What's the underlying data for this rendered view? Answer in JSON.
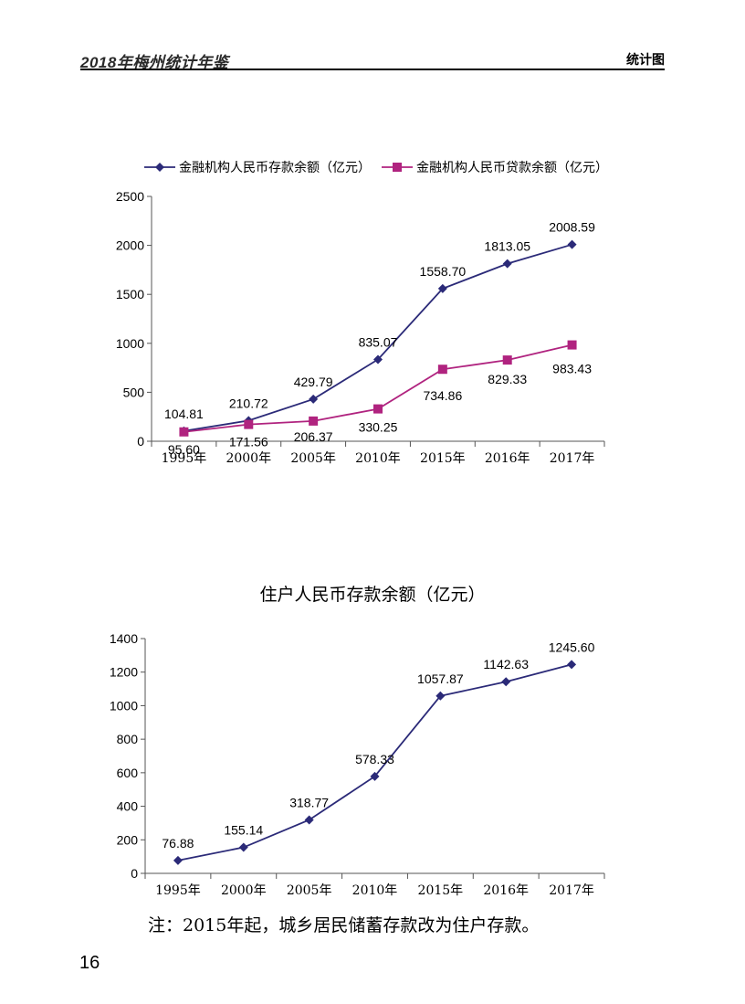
{
  "header": {
    "yearbook_title": "2018年梅州统计年鉴",
    "section_title": "统计图"
  },
  "page_number": "16",
  "note": "注：2015年起，城乡居民储蓄存款改为住户存款。",
  "colors": {
    "deposit_series": "#2b2a78",
    "loan_series": "#b0237f",
    "axis": "#555555"
  },
  "chart_data": [
    {
      "type": "line",
      "title": "",
      "categories": [
        "1995年",
        "2000年",
        "2005年",
        "2010年",
        "2015年",
        "2016年",
        "2017年"
      ],
      "ylim": [
        0,
        2500
      ],
      "yticks": [
        "0",
        "500",
        "1000",
        "1500",
        "2000",
        "2500"
      ],
      "grid": false,
      "legend_position": "top",
      "series": [
        {
          "name": "金融机构人民币存款余额（亿元）",
          "marker": "diamond",
          "color": "#2b2a78",
          "values": [
            104.81,
            210.72,
            429.79,
            835.07,
            1558.7,
            1813.05,
            2008.59
          ],
          "labels": [
            "104.81",
            "210.72",
            "429.79",
            "835.07",
            "1558.70",
            "1813.05",
            "2008.59"
          ]
        },
        {
          "name": "金融机构人民币贷款余额（亿元）",
          "marker": "square",
          "color": "#b0237f",
          "values": [
            95.6,
            171.56,
            206.37,
            330.25,
            734.86,
            829.33,
            983.43
          ],
          "labels": [
            "95.60",
            "171.56",
            "206.37",
            "330.25",
            "734.86",
            "829.33",
            "983.43"
          ]
        }
      ]
    },
    {
      "type": "line",
      "title": "住户人民币存款余额（亿元）",
      "categories": [
        "1995年",
        "2000年",
        "2005年",
        "2010年",
        "2015年",
        "2016年",
        "2017年"
      ],
      "ylim": [
        0,
        1400
      ],
      "yticks": [
        "0",
        "200",
        "400",
        "600",
        "800",
        "1000",
        "1200",
        "1400"
      ],
      "grid": false,
      "series": [
        {
          "name": "",
          "marker": "diamond",
          "color": "#2b2a78",
          "values": [
            76.88,
            155.14,
            318.77,
            578.33,
            1057.87,
            1142.63,
            1245.6
          ],
          "labels": [
            "76.88",
            "155.14",
            "318.77",
            "578.33",
            "1057.87",
            "1142.63",
            "1245.60"
          ]
        }
      ]
    }
  ]
}
